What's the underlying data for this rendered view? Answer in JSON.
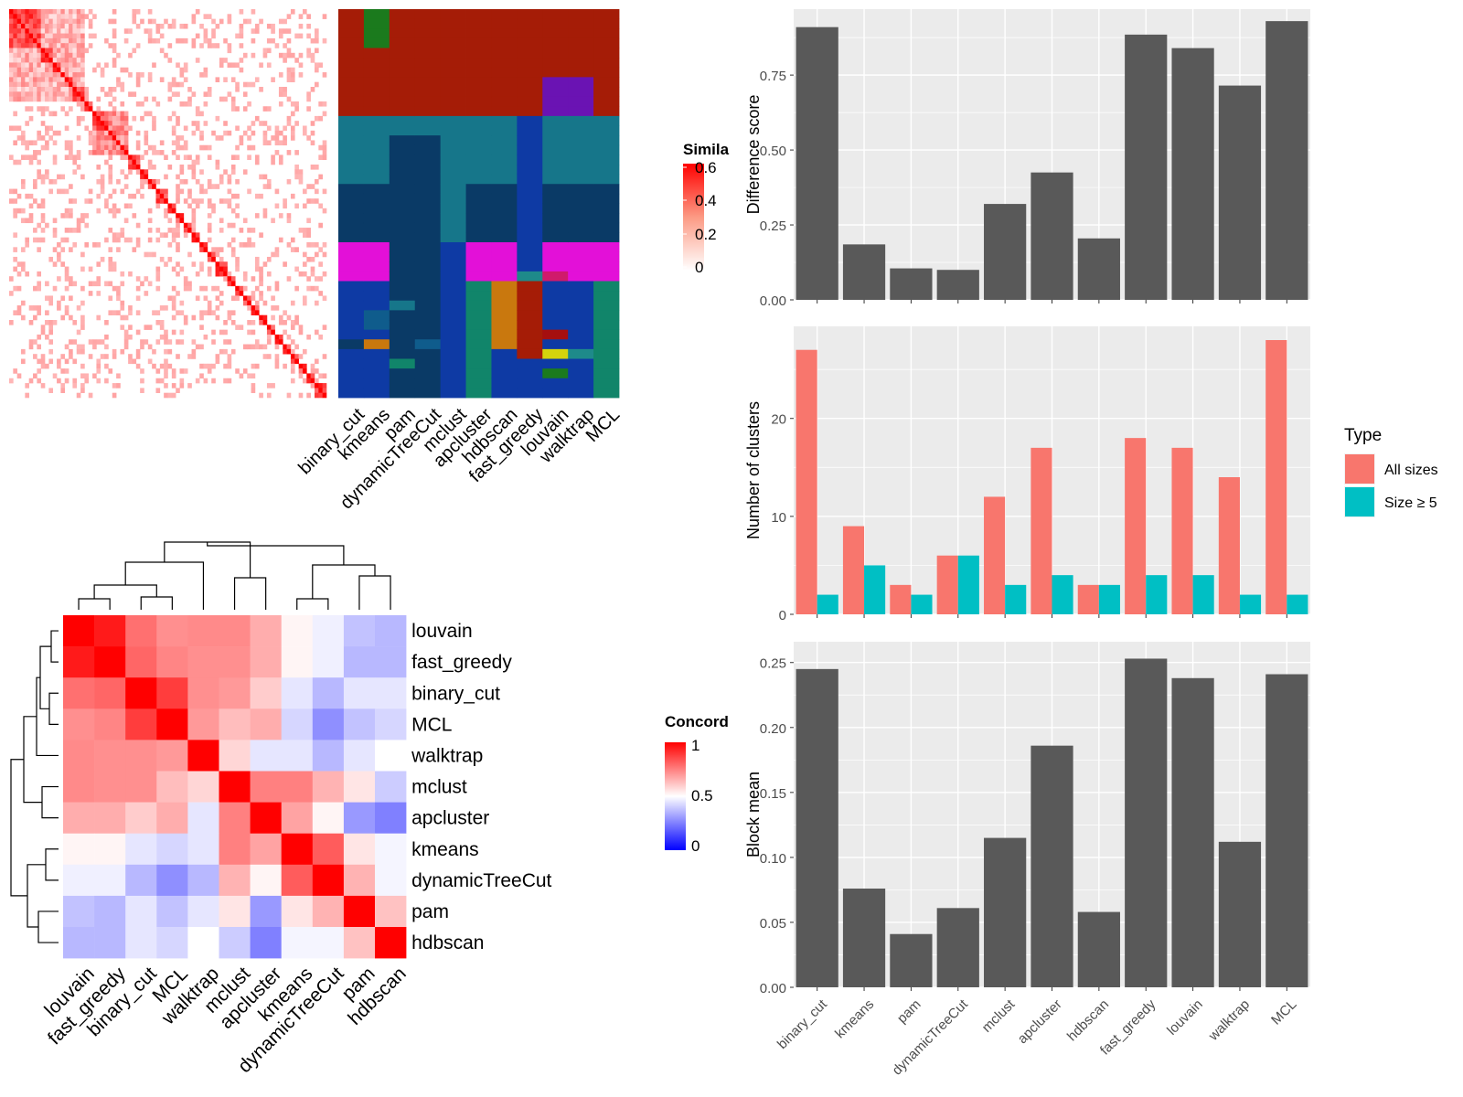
{
  "methods": [
    "binary_cut",
    "kmeans",
    "pam",
    "dynamicTreeCut",
    "mclust",
    "apcluster",
    "hdbscan",
    "fast_greedy",
    "louvain",
    "walktrap",
    "MCL"
  ],
  "similarity_heatmap": {
    "legend_title": "Simila",
    "legend_ticks": [
      "0.6",
      "0.4",
      "0.2",
      "0"
    ]
  },
  "concordance_heatmap": {
    "legend_title": "Concord",
    "legend_ticks": [
      "1",
      "0.5",
      "0"
    ],
    "order": [
      "louvain",
      "fast_greedy",
      "binary_cut",
      "MCL",
      "walktrap",
      "mclust",
      "apcluster",
      "kmeans",
      "dynamicTreeCut",
      "pam",
      "hdbscan"
    ],
    "matrix": [
      [
        1.0,
        0.95,
        0.78,
        0.72,
        0.73,
        0.73,
        0.66,
        0.52,
        0.47,
        0.38,
        0.36
      ],
      [
        0.95,
        1.0,
        0.8,
        0.74,
        0.72,
        0.72,
        0.66,
        0.52,
        0.47,
        0.36,
        0.36
      ],
      [
        0.78,
        0.8,
        1.0,
        0.88,
        0.72,
        0.7,
        0.6,
        0.45,
        0.36,
        0.45,
        0.45
      ],
      [
        0.72,
        0.74,
        0.88,
        1.0,
        0.7,
        0.63,
        0.66,
        0.42,
        0.28,
        0.38,
        0.42
      ],
      [
        0.73,
        0.72,
        0.72,
        0.7,
        1.0,
        0.58,
        0.45,
        0.45,
        0.36,
        0.45,
        0.5
      ],
      [
        0.73,
        0.72,
        0.72,
        0.63,
        0.58,
        1.0,
        0.75,
        0.75,
        0.65,
        0.55,
        0.4
      ],
      [
        0.66,
        0.66,
        0.6,
        0.66,
        0.45,
        0.75,
        1.0,
        0.68,
        0.52,
        0.3,
        0.25
      ],
      [
        0.52,
        0.52,
        0.45,
        0.42,
        0.45,
        0.75,
        0.68,
        1.0,
        0.82,
        0.55,
        0.48
      ],
      [
        0.47,
        0.47,
        0.36,
        0.28,
        0.36,
        0.65,
        0.52,
        0.82,
        1.0,
        0.65,
        0.48
      ],
      [
        0.38,
        0.36,
        0.45,
        0.38,
        0.45,
        0.55,
        0.3,
        0.55,
        0.65,
        1.0,
        0.62
      ],
      [
        0.36,
        0.36,
        0.45,
        0.42,
        0.5,
        0.4,
        0.25,
        0.48,
        0.48,
        0.62,
        1.0
      ]
    ]
  },
  "chart_data": [
    {
      "type": "bar",
      "categories": [
        "binary_cut",
        "kmeans",
        "pam",
        "dynamicTreeCut",
        "mclust",
        "apcluster",
        "hdbscan",
        "fast_greedy",
        "louvain",
        "walktrap",
        "MCL"
      ],
      "values": [
        0.91,
        0.185,
        0.105,
        0.1,
        0.32,
        0.425,
        0.205,
        0.885,
        0.84,
        0.715,
        0.93
      ],
      "ylabel": "Difference score",
      "yticks": [
        "0.00",
        "0.25",
        "0.50",
        "0.75"
      ],
      "ylim": [
        0,
        0.97
      ],
      "color": "#595959"
    },
    {
      "type": "bar",
      "categories": [
        "binary_cut",
        "kmeans",
        "pam",
        "dynamicTreeCut",
        "mclust",
        "apcluster",
        "hdbscan",
        "fast_greedy",
        "louvain",
        "walktrap",
        "MCL"
      ],
      "series": [
        {
          "name": "All sizes",
          "color": "#F8766D",
          "values": [
            27,
            9,
            3,
            6,
            12,
            17,
            3,
            18,
            17,
            14,
            28
          ]
        },
        {
          "name": "Size ≥ 5",
          "color": "#00BFC4",
          "values": [
            2,
            5,
            2,
            6,
            3,
            4,
            3,
            4,
            4,
            2,
            2
          ]
        }
      ],
      "ylabel": "Number of clusters",
      "yticks": [
        "0",
        "10",
        "20"
      ],
      "ylim": [
        0,
        29.4
      ],
      "legend_title": "Type",
      "legend_position": "right"
    },
    {
      "type": "bar",
      "categories": [
        "binary_cut",
        "kmeans",
        "pam",
        "dynamicTreeCut",
        "mclust",
        "apcluster",
        "hdbscan",
        "fast_greedy",
        "louvain",
        "walktrap",
        "MCL"
      ],
      "values": [
        0.245,
        0.076,
        0.041,
        0.061,
        0.115,
        0.186,
        0.058,
        0.253,
        0.238,
        0.112,
        0.241
      ],
      "ylabel": "Block mean",
      "yticks": [
        "0.00",
        "0.05",
        "0.10",
        "0.15",
        "0.20",
        "0.25"
      ],
      "ylim": [
        0,
        0.266
      ],
      "color": "#595959"
    }
  ]
}
